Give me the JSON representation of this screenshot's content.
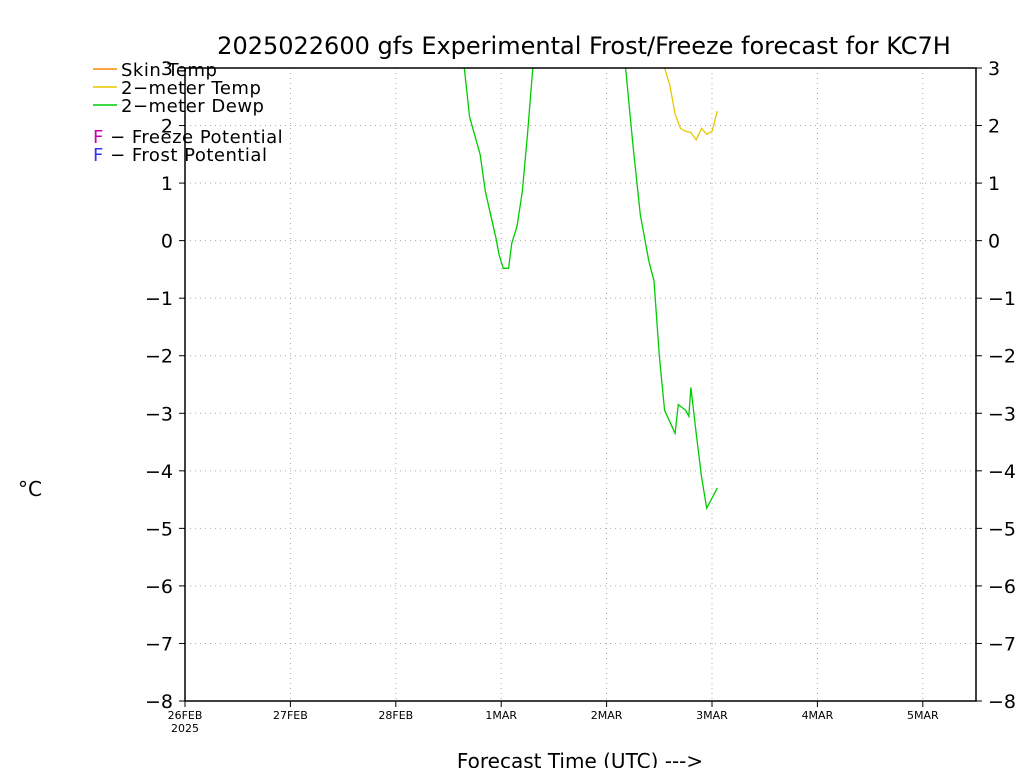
{
  "chart_data": {
    "type": "line",
    "title": "2025022600 gfs Experimental Frost/Freeze forecast for KC7H",
    "xlabel": "Forecast Time (UTC) --->",
    "ylabel": "°C",
    "ylim": [
      -8,
      3
    ],
    "xlim": [
      0,
      7.5
    ],
    "grid": true,
    "y_ticks": [
      3,
      2,
      1,
      0,
      -1,
      -2,
      -3,
      -4,
      -5,
      -6,
      -7,
      -8
    ],
    "y_tick_labels_left": [
      "3",
      "2",
      "1",
      "0",
      "−1",
      "−2",
      "−3",
      "−4",
      "−5",
      "−6",
      "−7",
      "−8"
    ],
    "y_tick_labels_right": [
      "3",
      "2",
      "1",
      "0",
      "−1",
      "−2",
      "−3",
      "−4",
      "−5",
      "−6",
      "−7",
      "−8"
    ],
    "x_ticks": [
      {
        "day": 0,
        "label": "26FEB",
        "sublabel": "2025"
      },
      {
        "day": 1,
        "label": "27FEB",
        "sublabel": ""
      },
      {
        "day": 2,
        "label": "28FEB",
        "sublabel": ""
      },
      {
        "day": 3,
        "label": "1MAR",
        "sublabel": ""
      },
      {
        "day": 4,
        "label": "2MAR",
        "sublabel": ""
      },
      {
        "day": 5,
        "label": "3MAR",
        "sublabel": ""
      },
      {
        "day": 6,
        "label": "4MAR",
        "sublabel": ""
      },
      {
        "day": 7,
        "label": "5MAR",
        "sublabel": ""
      }
    ],
    "legend": {
      "placement": "top-left",
      "series_entries": [
        {
          "label": "Skin Temp",
          "color": "#ff8c00"
        },
        {
          "label": "2−meter Temp",
          "color": "#e6c800"
        },
        {
          "label": "2−meter Dewp",
          "color": "#00cc00"
        }
      ],
      "potential_entries": [
        {
          "letter": "F",
          "label": " − Freeze Potential",
          "color": "#cc00aa"
        },
        {
          "letter": "F",
          "label": " − Frost Potential",
          "color": "#3333ff"
        }
      ]
    },
    "series": [
      {
        "name": "2−meter Temp",
        "color": "#e6c800",
        "points": [
          [
            4.55,
            3.0
          ],
          [
            4.6,
            2.7
          ],
          [
            4.65,
            2.2
          ],
          [
            4.7,
            1.95
          ],
          [
            4.75,
            1.9
          ],
          [
            4.8,
            1.88
          ],
          [
            4.85,
            1.75
          ],
          [
            4.9,
            1.95
          ],
          [
            4.95,
            1.85
          ],
          [
            5.0,
            1.9
          ],
          [
            5.05,
            2.25
          ]
        ]
      },
      {
        "name": "2−meter Dewp",
        "color": "#00cc00",
        "segments": [
          [
            [
              2.65,
              3.0
            ],
            [
              2.7,
              2.15
            ],
            [
              2.8,
              1.5
            ],
            [
              2.85,
              0.85
            ],
            [
              2.95,
              0.05
            ],
            [
              2.98,
              -0.25
            ],
            [
              3.02,
              -0.48
            ],
            [
              3.07,
              -0.48
            ],
            [
              3.1,
              -0.05
            ],
            [
              3.15,
              0.25
            ],
            [
              3.2,
              0.85
            ],
            [
              3.25,
              1.85
            ],
            [
              3.3,
              3.0
            ]
          ],
          [
            [
              4.18,
              3.0
            ],
            [
              4.25,
              1.65
            ],
            [
              4.32,
              0.45
            ],
            [
              4.4,
              -0.35
            ],
            [
              4.45,
              -0.7
            ],
            [
              4.5,
              -2.0
            ],
            [
              4.55,
              -2.95
            ],
            [
              4.65,
              -3.35
            ],
            [
              4.68,
              -2.85
            ],
            [
              4.75,
              -2.95
            ],
            [
              4.78,
              -3.05
            ],
            [
              4.8,
              -2.55
            ],
            [
              4.85,
              -3.35
            ],
            [
              4.9,
              -4.1
            ],
            [
              4.95,
              -4.65
            ],
            [
              5.05,
              -4.3
            ]
          ]
        ]
      },
      {
        "name": "Skin Temp",
        "color": "#ff8c00",
        "segments": []
      }
    ]
  }
}
